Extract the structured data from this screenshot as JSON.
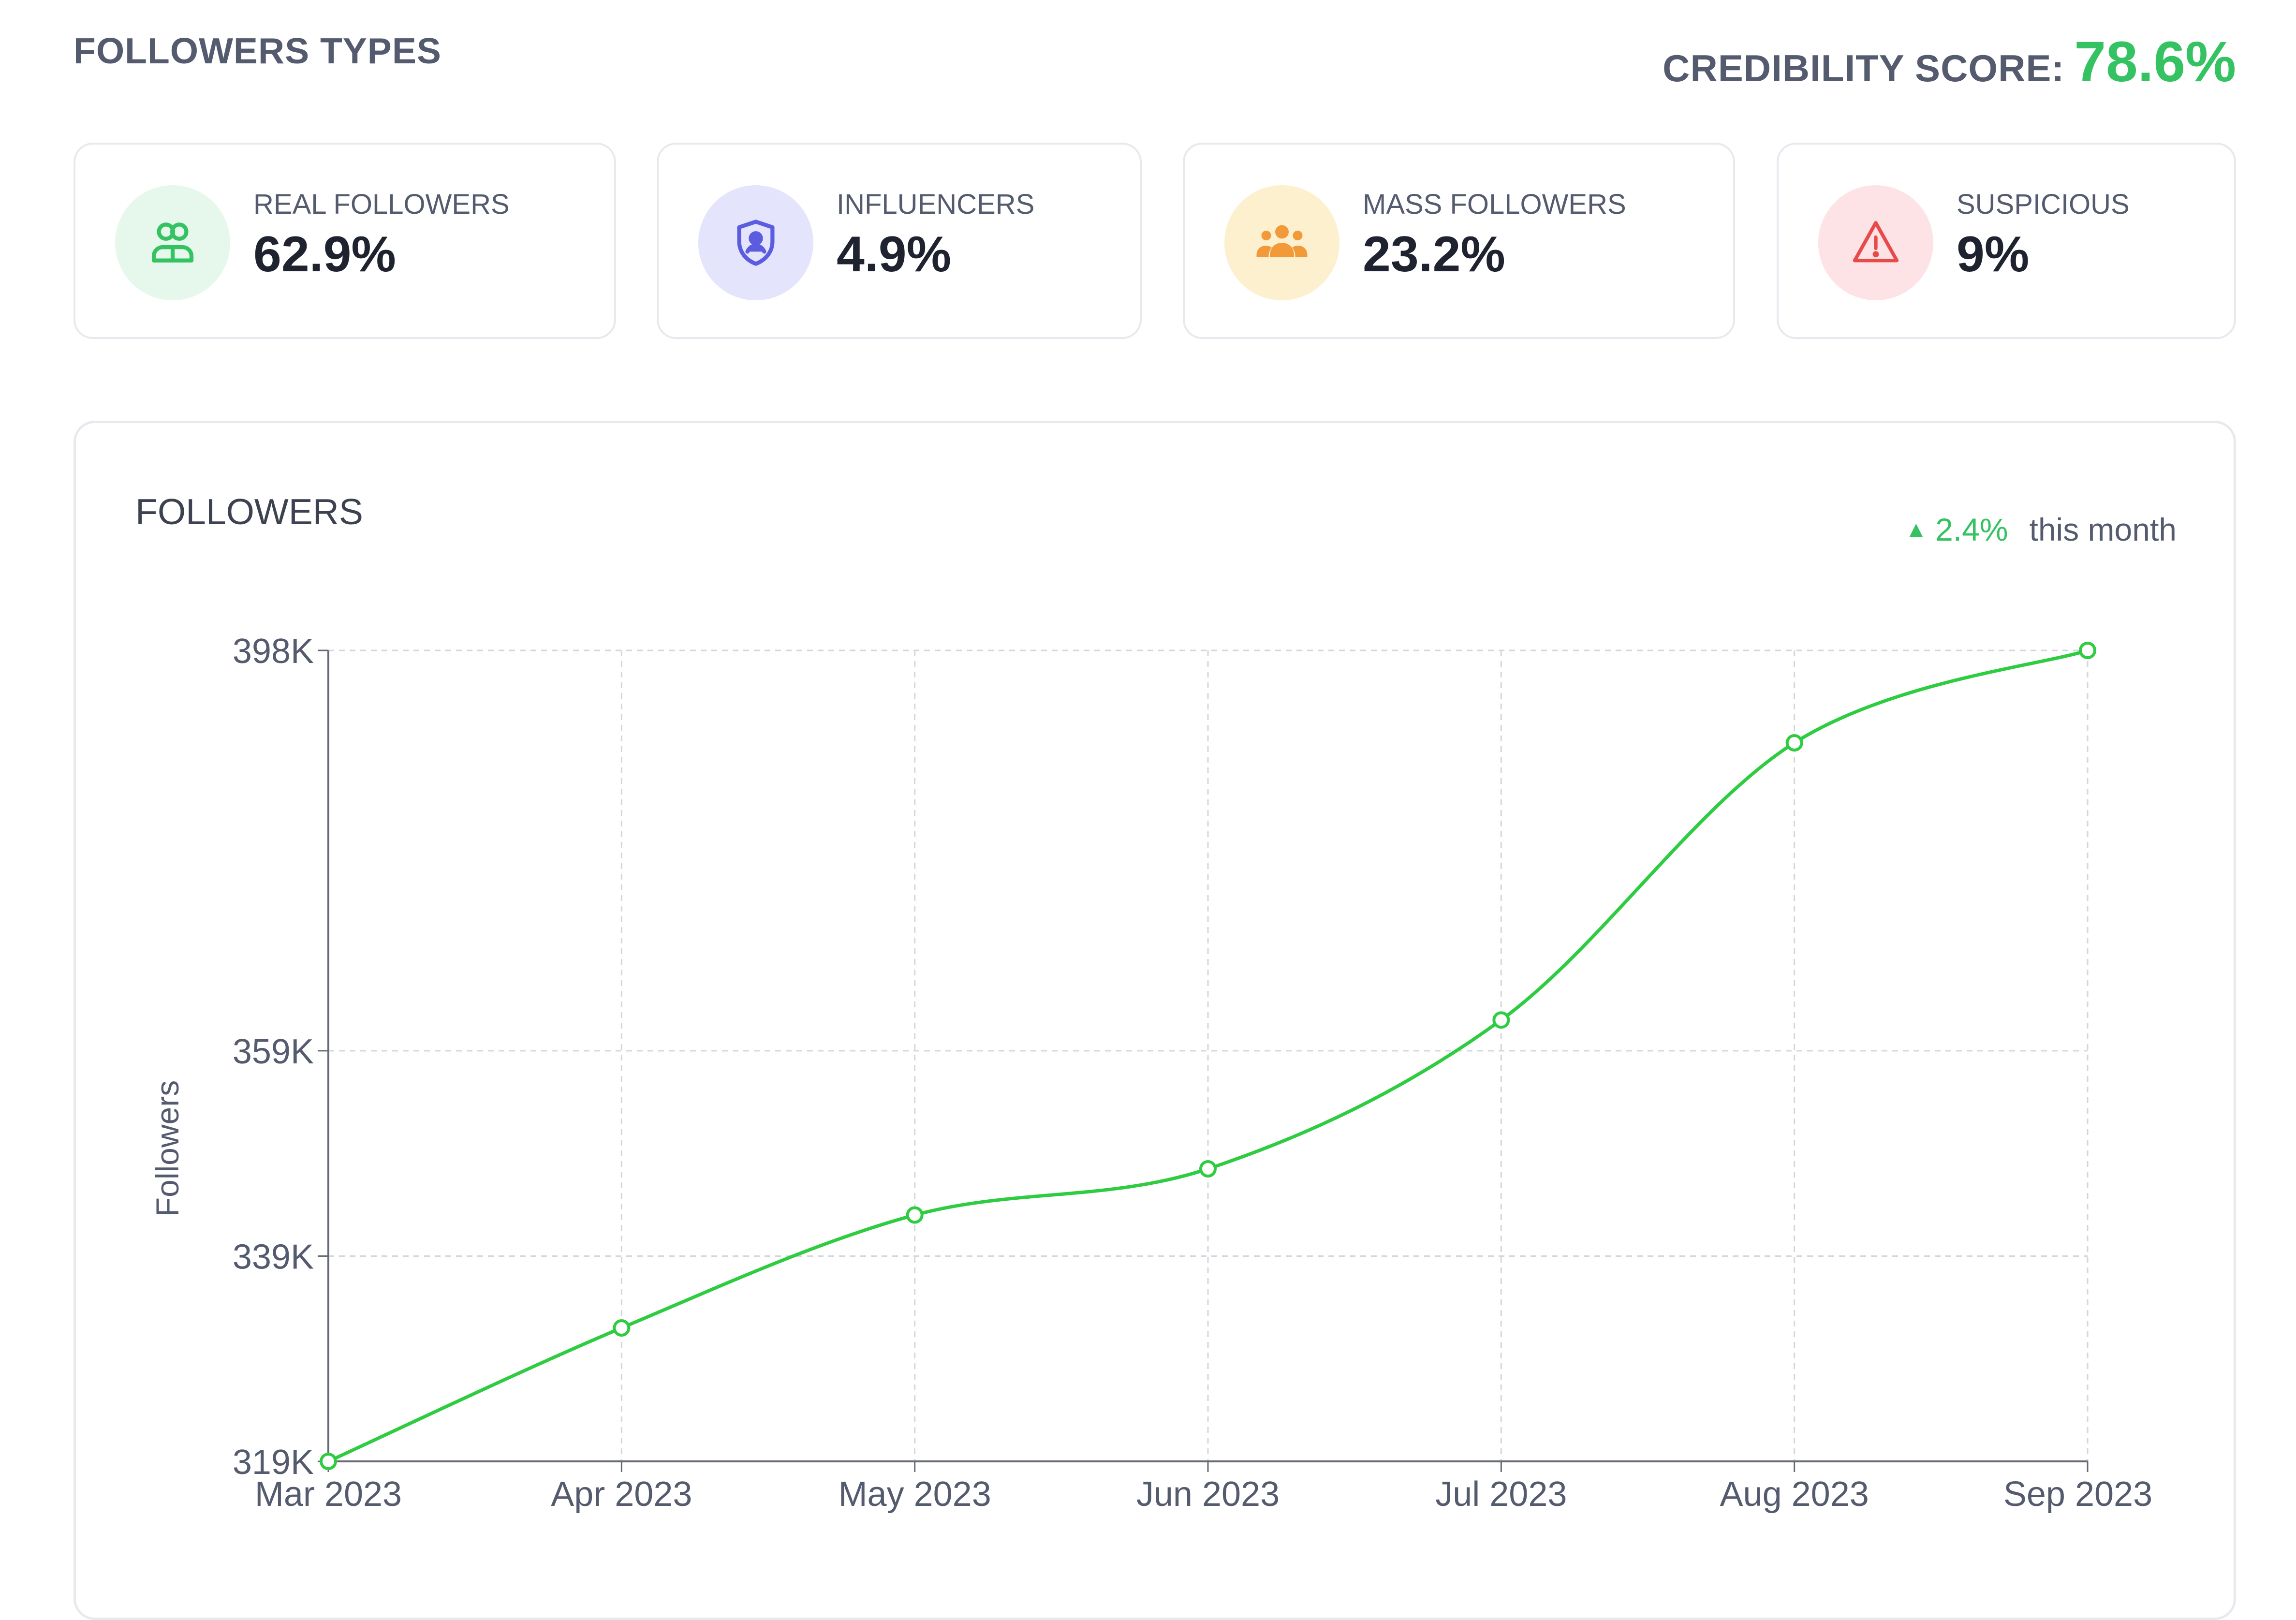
{
  "header": {
    "title": "FOLLOWERS TYPES",
    "credibility_label": "CREDIBILITY SCORE:",
    "credibility_value": "78.6%"
  },
  "cards": [
    {
      "label": "REAL FOLLOWERS",
      "value": "62.9%",
      "icon": "users-icon",
      "color": "#34c262",
      "bg": "#e6f8eb"
    },
    {
      "label": "INFLUENCERS",
      "value": "4.9%",
      "icon": "shield-user-icon",
      "color": "#5b5ce0",
      "bg": "#e4e4fc"
    },
    {
      "label": "MASS FOLLOWERS",
      "value": "23.2%",
      "icon": "group-icon",
      "color": "#f29a3a",
      "bg": "#fdf0cf"
    },
    {
      "label": "SUSPICIOUS",
      "value": "9%",
      "icon": "warning-icon",
      "color": "#e84a4a",
      "bg": "#fde3e6"
    }
  ],
  "followers_panel": {
    "title": "FOLLOWERS",
    "change_value": "2.4%",
    "change_suffix": "this month"
  },
  "chart_data": {
    "type": "line",
    "title": "FOLLOWERS",
    "xlabel": "",
    "ylabel": "Followers",
    "categories": [
      "Mar 2023",
      "Apr 2023",
      "May 2023",
      "Jun 2023",
      "Jul 2023",
      "Aug 2023",
      "Sep 2023"
    ],
    "series": [
      {
        "name": "Followers",
        "values": [
          319000,
          332000,
          343000,
          347500,
          362000,
          389000,
          398000
        ]
      }
    ],
    "ylim": [
      319000,
      398000
    ],
    "yticks": [
      319000,
      339000,
      359000,
      398000
    ],
    "ytick_labels": [
      "319K",
      "339K",
      "359K",
      "398K"
    ],
    "grid": true,
    "color": "#2ecc40"
  }
}
